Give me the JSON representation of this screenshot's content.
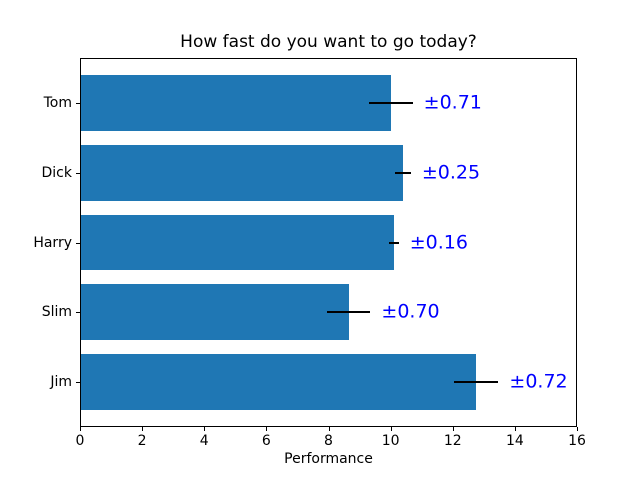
{
  "figure": {
    "background": "#ffffff"
  },
  "chart_data": {
    "type": "bar",
    "orientation": "horizontal",
    "title": "How fast do you want to go today?",
    "xlabel": "Performance",
    "ylabel": "",
    "categories": [
      "Tom",
      "Dick",
      "Harry",
      "Slim",
      "Jim"
    ],
    "series": [
      {
        "name": "Performance",
        "values": [
          10.0,
          10.4,
          10.1,
          8.65,
          12.75
        ],
        "errors": [
          0.71,
          0.25,
          0.16,
          0.7,
          0.72
        ],
        "error_labels": [
          "±0.71",
          "±0.25",
          "±0.16",
          "±0.70",
          "±0.72"
        ]
      }
    ],
    "xlim": [
      0,
      16
    ],
    "xticks": [
      "0",
      "2",
      "4",
      "6",
      "8",
      "10",
      "12",
      "14",
      "16"
    ],
    "xtick_values": [
      0,
      2,
      4,
      6,
      8,
      10,
      12,
      14,
      16
    ],
    "grid": false,
    "legend": null,
    "bar_color": "#1f77b4",
    "error_line_color": "#000000",
    "error_label_color": "#0000ff"
  }
}
